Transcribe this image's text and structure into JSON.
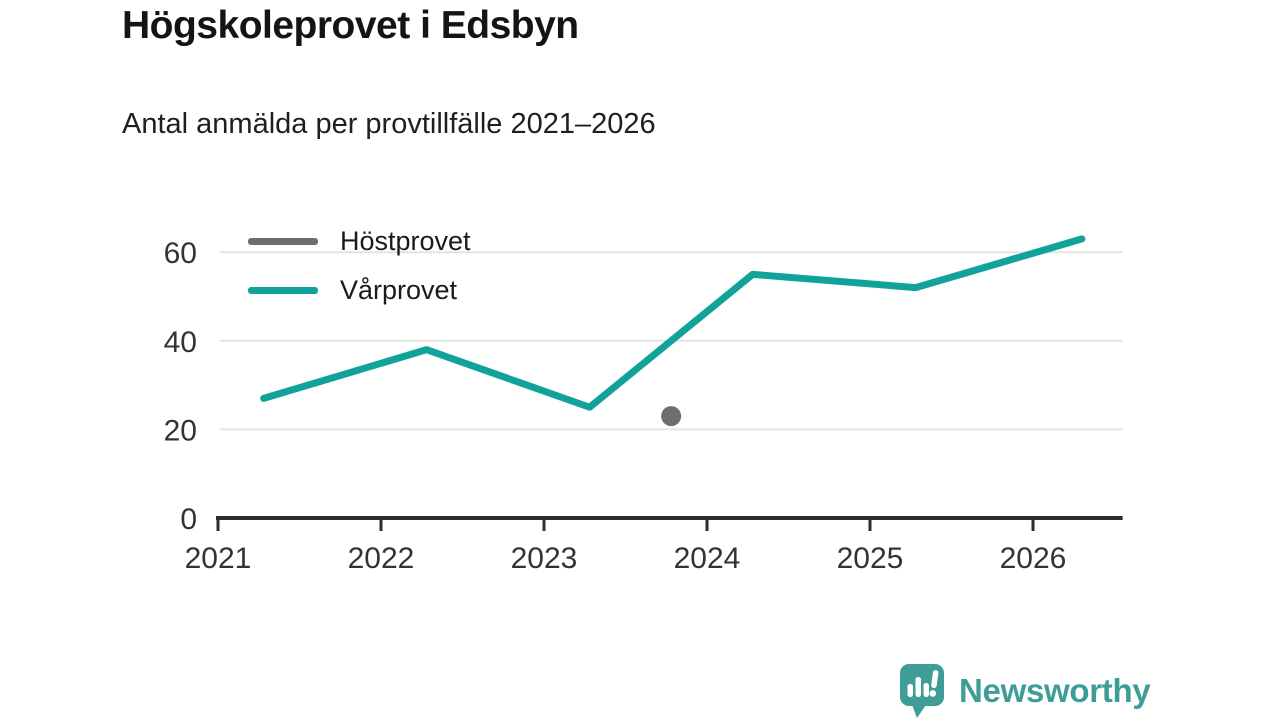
{
  "chart_data": {
    "type": "line",
    "title": "Högskoleprovet i Edsbyn",
    "subtitle": "Antal anmälda per provtillfälle 2021–2026",
    "x_ticks": [
      2021,
      2022,
      2023,
      2024,
      2025,
      2026
    ],
    "y_ticks": [
      0,
      20,
      40,
      60
    ],
    "xlim": [
      2021,
      2026.55
    ],
    "ylim": [
      0,
      66
    ],
    "grid": "horizontal-light",
    "legend_position": "top-left-inside",
    "series": [
      {
        "name": "Höstprovet",
        "color": "#6e6e6e",
        "style": "point",
        "points": [
          [
            2023.78,
            23
          ]
        ]
      },
      {
        "name": "Vårprovet",
        "color": "#11a39a",
        "style": "line",
        "points": [
          [
            2021.28,
            27
          ],
          [
            2022.28,
            38
          ],
          [
            2023.28,
            25
          ],
          [
            2024.28,
            55
          ],
          [
            2025.28,
            52
          ],
          [
            2026.3,
            63
          ]
        ]
      }
    ]
  },
  "axis_colors": {
    "axis_line": "#2e2e2e",
    "gridline": "#e4e4e4",
    "tick_label": "#333333"
  },
  "branding": {
    "name": "Newsworthy",
    "color": "#3e9e97",
    "logo_icon": "bar-chart-speech-bubble-icon"
  }
}
